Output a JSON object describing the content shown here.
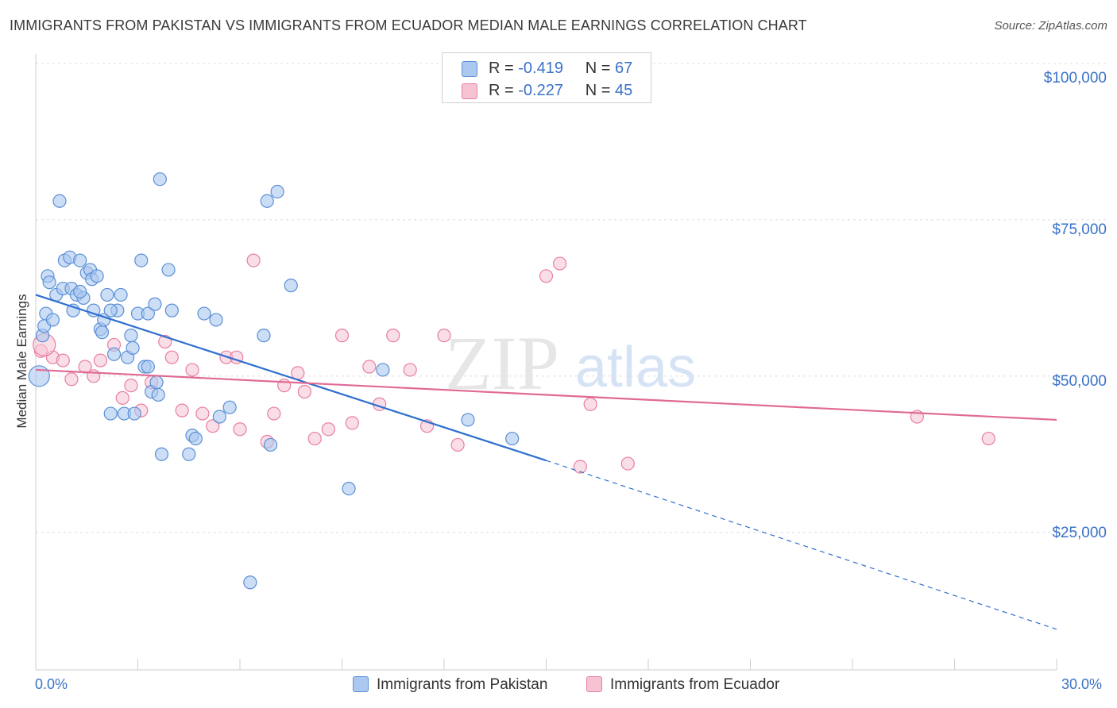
{
  "title": "IMMIGRANTS FROM PAKISTAN VS IMMIGRANTS FROM ECUADOR MEDIAN MALE EARNINGS CORRELATION CHART",
  "source": "Source: ZipAtlas.com",
  "watermark": {
    "zip": "ZIP",
    "atlas": "atlas"
  },
  "legend": {
    "pakistan": {
      "r_label": "R = ",
      "r_value": "-0.419",
      "n_label": "N = ",
      "n_value": "67"
    },
    "ecuador": {
      "r_label": "R = ",
      "r_value": "-0.227",
      "n_label": "N = ",
      "n_value": "45"
    }
  },
  "chart_data": {
    "type": "scatter",
    "title": "IMMIGRANTS FROM PAKISTAN VS IMMIGRANTS FROM ECUADOR MEDIAN MALE EARNINGS CORRELATION CHART",
    "xlabel": "",
    "ylabel": "Median Male Earnings",
    "xlim": [
      0,
      30
    ],
    "ylim": [
      0,
      100000
    ],
    "x_tick_labels": [
      "0.0%",
      "30.0%"
    ],
    "y_ticks": [
      25000,
      50000,
      75000,
      100000
    ],
    "y_tick_labels": [
      "$25,000",
      "$50,000",
      "$75,000",
      "$100,000"
    ],
    "colors": {
      "pakistan": "#5b8fd6",
      "ecuador": "#e87fa0",
      "pakistan_fill": "#aac8f0",
      "ecuador_fill": "#f6c3d3",
      "axis_text": "#3a72c9"
    },
    "series": [
      {
        "name": "Immigrants from Pakistan",
        "r": -0.419,
        "n": 67,
        "trend": {
          "x0": 0,
          "y0": 63000,
          "x1": 15,
          "y1": 36500,
          "dash_to_x": 30,
          "dash_to_y": 9500
        },
        "points": [
          [
            0.1,
            50000
          ],
          [
            0.2,
            56500
          ],
          [
            0.25,
            58000
          ],
          [
            0.3,
            60000
          ],
          [
            0.35,
            66000
          ],
          [
            0.4,
            65000
          ],
          [
            0.5,
            59000
          ],
          [
            0.6,
            63000
          ],
          [
            0.7,
            78000
          ],
          [
            0.8,
            64000
          ],
          [
            0.85,
            68500
          ],
          [
            1.0,
            69000
          ],
          [
            1.05,
            64000
          ],
          [
            1.1,
            60500
          ],
          [
            1.2,
            63000
          ],
          [
            1.3,
            68500
          ],
          [
            1.4,
            62500
          ],
          [
            1.5,
            66500
          ],
          [
            1.6,
            67000
          ],
          [
            1.65,
            65500
          ],
          [
            1.7,
            60500
          ],
          [
            1.8,
            66000
          ],
          [
            1.9,
            57500
          ],
          [
            1.95,
            57000
          ],
          [
            2.0,
            59000
          ],
          [
            2.1,
            63000
          ],
          [
            2.2,
            44000
          ],
          [
            2.3,
            53500
          ],
          [
            2.4,
            60500
          ],
          [
            2.5,
            63000
          ],
          [
            2.6,
            44000
          ],
          [
            2.7,
            53000
          ],
          [
            2.8,
            56500
          ],
          [
            2.85,
            54500
          ],
          [
            2.9,
            44000
          ],
          [
            3.0,
            60000
          ],
          [
            3.1,
            68500
          ],
          [
            3.2,
            51500
          ],
          [
            3.3,
            60000
          ],
          [
            3.4,
            47500
          ],
          [
            3.5,
            61500
          ],
          [
            3.55,
            49000
          ],
          [
            3.6,
            47000
          ],
          [
            3.65,
            81500
          ],
          [
            3.7,
            37500
          ],
          [
            3.9,
            67000
          ],
          [
            4.0,
            60500
          ],
          [
            4.5,
            37500
          ],
          [
            4.6,
            40500
          ],
          [
            4.7,
            40000
          ],
          [
            4.95,
            60000
          ],
          [
            5.3,
            59000
          ],
          [
            5.4,
            43500
          ],
          [
            5.7,
            45000
          ],
          [
            6.3,
            17000
          ],
          [
            6.7,
            56500
          ],
          [
            6.8,
            78000
          ],
          [
            6.9,
            39000
          ],
          [
            7.1,
            79500
          ],
          [
            7.5,
            64500
          ],
          [
            9.2,
            32000
          ],
          [
            10.2,
            51000
          ],
          [
            12.7,
            43000
          ],
          [
            14.0,
            40000
          ],
          [
            3.3,
            51500
          ],
          [
            2.2,
            60500
          ],
          [
            1.3,
            63500
          ]
        ]
      },
      {
        "name": "Immigrants from Ecuador",
        "r": -0.227,
        "n": 45,
        "trend": {
          "x0": 0,
          "y0": 51000,
          "x1": 30,
          "y1": 43000
        },
        "points": [
          [
            0.15,
            54000
          ],
          [
            0.5,
            53000
          ],
          [
            0.8,
            52500
          ],
          [
            1.05,
            49500
          ],
          [
            1.45,
            51500
          ],
          [
            1.7,
            50000
          ],
          [
            1.9,
            52500
          ],
          [
            2.3,
            55000
          ],
          [
            2.55,
            46500
          ],
          [
            2.8,
            48500
          ],
          [
            3.1,
            44500
          ],
          [
            3.4,
            49000
          ],
          [
            3.8,
            55500
          ],
          [
            4.0,
            53000
          ],
          [
            4.3,
            44500
          ],
          [
            4.6,
            51000
          ],
          [
            4.9,
            44000
          ],
          [
            5.2,
            42000
          ],
          [
            5.6,
            53000
          ],
          [
            5.9,
            53000
          ],
          [
            6.0,
            41500
          ],
          [
            6.4,
            68500
          ],
          [
            6.8,
            39500
          ],
          [
            7.0,
            44000
          ],
          [
            7.3,
            48500
          ],
          [
            7.7,
            50500
          ],
          [
            7.9,
            47500
          ],
          [
            8.2,
            40000
          ],
          [
            8.6,
            41500
          ],
          [
            9.0,
            56500
          ],
          [
            9.3,
            42500
          ],
          [
            9.8,
            51500
          ],
          [
            10.1,
            45500
          ],
          [
            10.5,
            56500
          ],
          [
            11.0,
            51000
          ],
          [
            11.5,
            42000
          ],
          [
            12.0,
            56500
          ],
          [
            12.4,
            39000
          ],
          [
            15.0,
            66000
          ],
          [
            15.4,
            68000
          ],
          [
            16.0,
            35500
          ],
          [
            16.3,
            45500
          ],
          [
            17.4,
            36000
          ],
          [
            25.9,
            43500
          ],
          [
            28.0,
            40000
          ]
        ]
      }
    ]
  },
  "bottom_legend": {
    "pakistan": "Immigrants from Pakistan",
    "ecuador": "Immigrants from Ecuador"
  },
  "x_axis": {
    "min_label": "0.0%",
    "max_label": "30.0%"
  },
  "y_axis_label": "Median Male Earnings"
}
